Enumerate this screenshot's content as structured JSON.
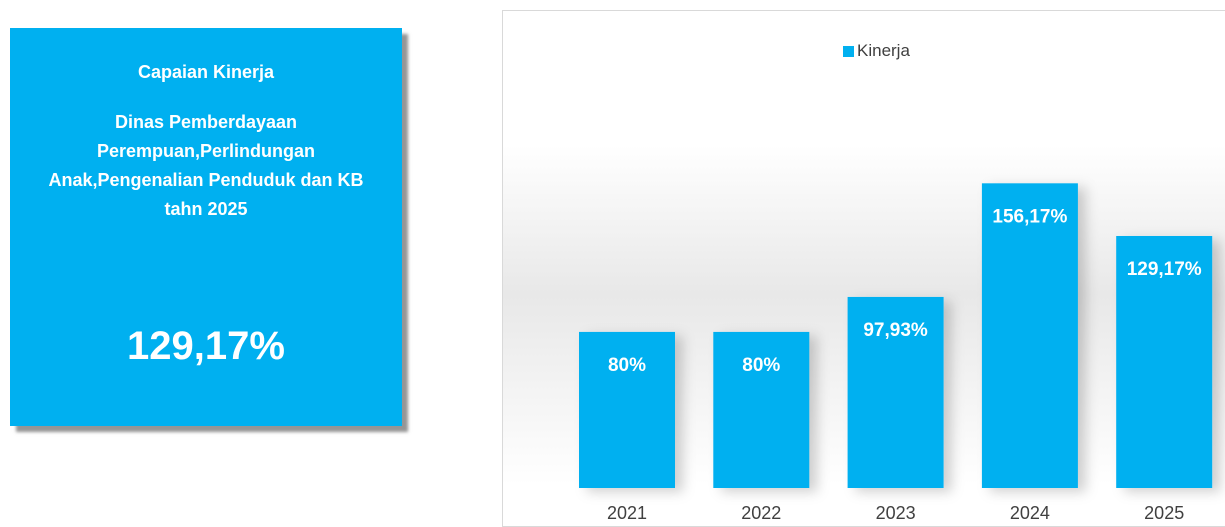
{
  "card": {
    "title": "Capaian Kinerja",
    "subtitle": "Dinas Pemberdayaan Perempuan,Perlindungan Anak,Pengenalian Penduduk dan KB tahn 2025",
    "value": "129,17%"
  },
  "colors": {
    "accent": "#00b0f0",
    "label": "#ffffff",
    "axis_text": "#404040"
  },
  "chart_data": {
    "type": "bar",
    "categories": [
      "2021",
      "2022",
      "2023",
      "2024",
      "2025"
    ],
    "series": [
      {
        "name": "Kinerja",
        "values": [
          80,
          80,
          97.93,
          156.17,
          129.17
        ],
        "labels": [
          "80%",
          "80%",
          "97,93%",
          "156,17%",
          "129,17%"
        ]
      }
    ],
    "ylim": [
      0,
      200
    ],
    "legend": "top",
    "grid": false
  }
}
